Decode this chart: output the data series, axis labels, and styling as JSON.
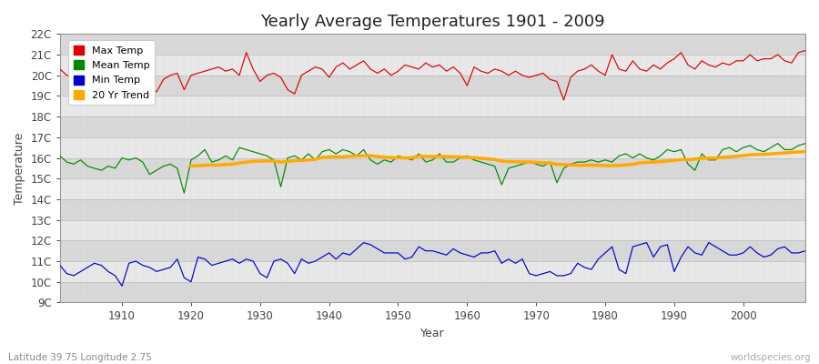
{
  "title": "Yearly Average Temperatures 1901 - 2009",
  "xlabel": "Year",
  "ylabel": "Temperature",
  "lat_lon_text": "Latitude 39.75 Longitude 2.75",
  "watermark": "worldspecies.org",
  "ylim": [
    9,
    22
  ],
  "xlim": [
    1901,
    2009
  ],
  "xticks": [
    1910,
    1920,
    1930,
    1940,
    1950,
    1960,
    1970,
    1980,
    1990,
    2000
  ],
  "yticks": [
    9,
    10,
    11,
    12,
    13,
    14,
    15,
    16,
    17,
    18,
    19,
    20,
    21,
    22
  ],
  "ytick_labels": [
    "9C",
    "10C",
    "11C",
    "12C",
    "13C",
    "14C",
    "15C",
    "16C",
    "17C",
    "18C",
    "19C",
    "20C",
    "21C",
    "22C"
  ],
  "max_color": "#dd0000",
  "mean_color": "#008800",
  "min_color": "#0000cc",
  "trend_color": "#ffaa00",
  "fig_bg": "#ffffff",
  "plot_bg_light": "#e8e8e8",
  "plot_bg_dark": "#d8d8d8",
  "title_fontsize": 13,
  "axis_fontsize": 9,
  "tick_fontsize": 8.5
}
